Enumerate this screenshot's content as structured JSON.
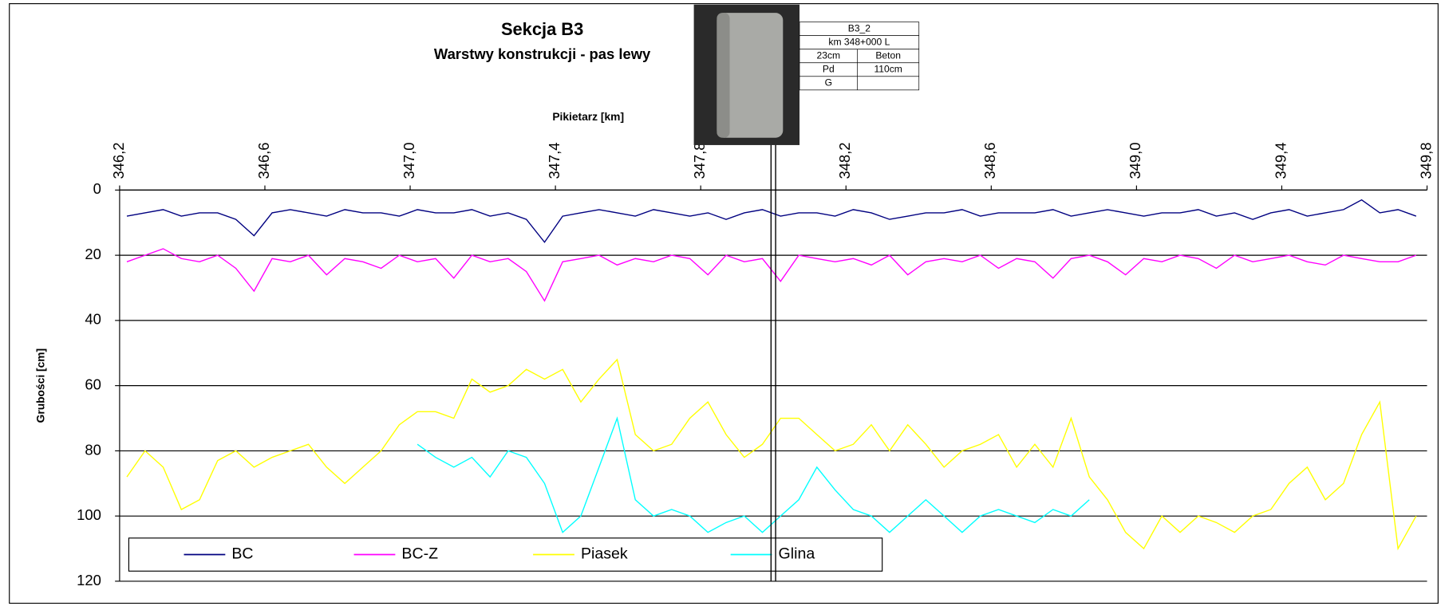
{
  "chart_data": {
    "type": "line",
    "title": "Sekcja B3",
    "subtitle": "Warstwy konstrukcji - pas lewy",
    "x_label": "Pikietarz [km]",
    "y_label": "Grubości [cm]",
    "x_axis_position": "top",
    "y_inverted": true,
    "grid": true,
    "legend": "bottom-left",
    "xlim": [
      346.2,
      349.8
    ],
    "xticks": [
      {
        "value": 346.2,
        "label": "346,2"
      },
      {
        "value": 346.6,
        "label": "346,6"
      },
      {
        "value": 347.0,
        "label": "347,0"
      },
      {
        "value": 347.4,
        "label": "347,4"
      },
      {
        "value": 347.8,
        "label": "347,8"
      },
      {
        "value": 348.2,
        "label": "348,2"
      },
      {
        "value": 348.6,
        "label": "348,6"
      },
      {
        "value": 349.0,
        "label": "349,0"
      },
      {
        "value": 349.4,
        "label": "349,4"
      },
      {
        "value": 349.8,
        "label": "349,8"
      }
    ],
    "ylim": [
      0,
      120
    ],
    "yticks": [
      0,
      20,
      40,
      60,
      80,
      100,
      120
    ],
    "x": [
      346.22,
      346.27,
      346.32,
      346.37,
      346.42,
      346.47,
      346.52,
      346.57,
      346.62,
      346.67,
      346.72,
      346.77,
      346.82,
      346.87,
      346.92,
      346.97,
      347.02,
      347.07,
      347.12,
      347.17,
      347.22,
      347.27,
      347.32,
      347.37,
      347.42,
      347.47,
      347.52,
      347.57,
      347.62,
      347.67,
      347.72,
      347.77,
      347.82,
      347.87,
      347.92,
      347.97,
      348.02,
      348.07,
      348.12,
      348.17,
      348.22,
      348.27,
      348.32,
      348.37,
      348.42,
      348.47,
      348.52,
      348.57,
      348.62,
      348.67,
      348.72,
      348.77,
      348.82,
      348.87,
      348.92,
      348.97,
      349.02,
      349.07,
      349.12,
      349.17,
      349.22,
      349.27,
      349.32,
      349.37,
      349.42,
      349.47,
      349.52,
      349.57,
      349.62,
      349.67,
      349.72,
      349.77
    ],
    "series": [
      {
        "name": "BC",
        "color": "#000080",
        "values": [
          8,
          7,
          6,
          8,
          7,
          7,
          9,
          14,
          7,
          6,
          7,
          8,
          6,
          7,
          7,
          8,
          6,
          7,
          7,
          6,
          8,
          7,
          9,
          16,
          8,
          7,
          6,
          7,
          8,
          6,
          7,
          8,
          7,
          9,
          7,
          6,
          8,
          7,
          7,
          8,
          6,
          7,
          9,
          8,
          7,
          7,
          6,
          8,
          7,
          7,
          7,
          6,
          8,
          7,
          6,
          7,
          8,
          7,
          7,
          6,
          8,
          7,
          9,
          7,
          6,
          8,
          7,
          6,
          3,
          7,
          6,
          8
        ]
      },
      {
        "name": "BC-Z",
        "color": "#ff00ff",
        "values": [
          22,
          20,
          18,
          21,
          22,
          20,
          24,
          31,
          21,
          22,
          20,
          26,
          21,
          22,
          24,
          20,
          22,
          21,
          27,
          20,
          22,
          21,
          25,
          34,
          22,
          21,
          20,
          23,
          21,
          22,
          20,
          21,
          26,
          20,
          22,
          21,
          28,
          20,
          21,
          22,
          21,
          23,
          20,
          26,
          22,
          21,
          22,
          20,
          24,
          21,
          22,
          27,
          21,
          20,
          22,
          26,
          21,
          22,
          20,
          21,
          24,
          20,
          22,
          21,
          20,
          22,
          23,
          20,
          21,
          22,
          22,
          20
        ]
      },
      {
        "name": "Piasek",
        "color": "#ffff00",
        "values": [
          88,
          80,
          85,
          98,
          95,
          83,
          80,
          85,
          82,
          80,
          78,
          85,
          90,
          85,
          80,
          72,
          68,
          68,
          70,
          58,
          62,
          60,
          55,
          58,
          55,
          65,
          58,
          52,
          75,
          80,
          78,
          70,
          65,
          75,
          82,
          78,
          70,
          70,
          75,
          80,
          78,
          72,
          80,
          72,
          78,
          85,
          80,
          78,
          75,
          85,
          78,
          85,
          70,
          88,
          95,
          105,
          110,
          100,
          105,
          100,
          102,
          105,
          100,
          98,
          90,
          85,
          95,
          90,
          75,
          65,
          110,
          100
        ]
      },
      {
        "name": "Glina",
        "color": "#00ffff",
        "values": [
          null,
          null,
          null,
          null,
          null,
          null,
          null,
          null,
          null,
          null,
          null,
          null,
          null,
          null,
          null,
          null,
          78,
          82,
          85,
          82,
          88,
          80,
          82,
          90,
          105,
          100,
          85,
          70,
          95,
          100,
          98,
          100,
          105,
          102,
          100,
          105,
          100,
          95,
          85,
          92,
          98,
          100,
          105,
          100,
          95,
          100,
          105,
          100,
          98,
          100,
          102,
          98,
          100,
          95,
          null,
          null,
          null,
          null,
          null,
          null,
          null,
          null,
          null,
          null,
          null,
          null,
          null,
          null,
          null,
          null,
          null,
          null
        ]
      }
    ],
    "annotation": {
      "marker_x": 348.0,
      "table": [
        [
          "B3_2"
        ],
        [
          "km 348+000 L"
        ],
        [
          "23cm",
          "Beton"
        ],
        [
          "Pd",
          "110cm"
        ],
        [
          "G"
        ]
      ]
    }
  }
}
